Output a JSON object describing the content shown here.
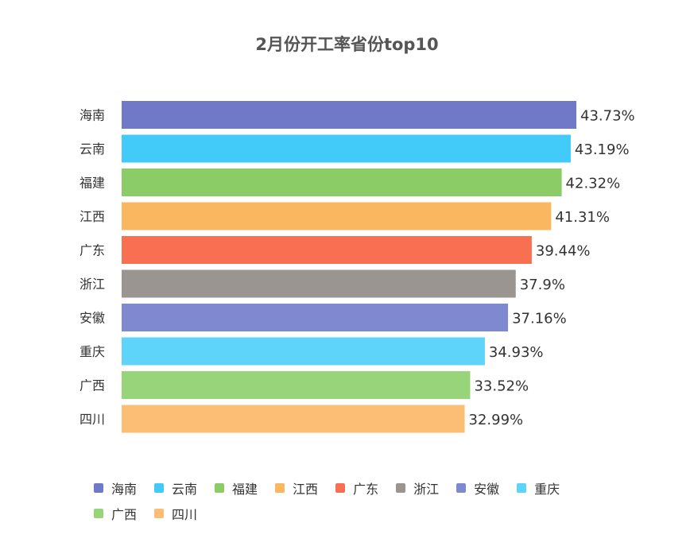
{
  "chart_data": {
    "type": "bar",
    "orientation": "horizontal",
    "title": "2月份开工率省份top10",
    "categories": [
      "海南",
      "云南",
      "福建",
      "江西",
      "广东",
      "浙江",
      "安徽",
      "重庆",
      "广西",
      "四川"
    ],
    "values": [
      43.73,
      43.19,
      42.32,
      41.31,
      39.44,
      37.9,
      37.16,
      34.93,
      33.52,
      32.99
    ],
    "value_labels": [
      "43.73%",
      "43.19%",
      "42.32%",
      "41.31%",
      "39.44%",
      "37.9%",
      "37.16%",
      "34.93%",
      "33.52%",
      "32.99%"
    ],
    "colors": [
      "#6f79c8",
      "#42cbf8",
      "#8ccc66",
      "#fbb760",
      "#f96f52",
      "#9a9591",
      "#7f89d0",
      "#5fd4fa",
      "#98d47a",
      "#fcbd74"
    ],
    "xlim": [
      0,
      43.73
    ],
    "grid": false,
    "legend_position": "bottom"
  }
}
